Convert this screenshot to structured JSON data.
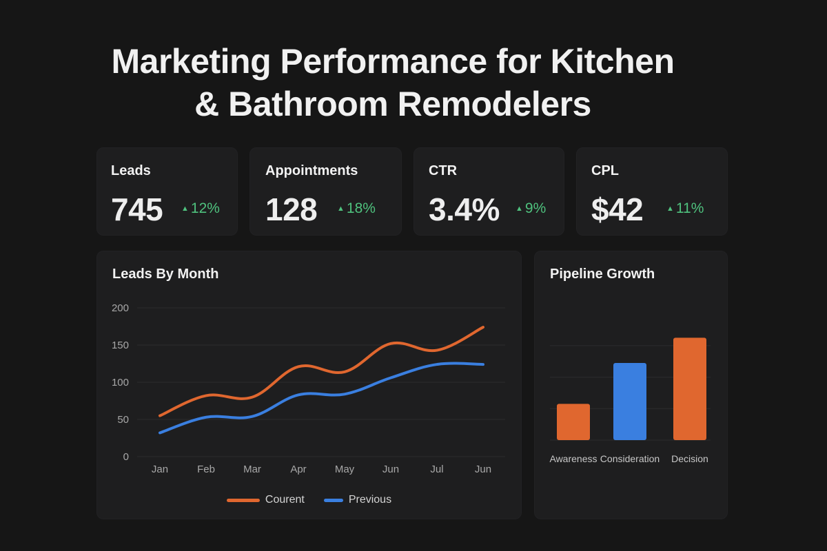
{
  "header": {
    "title_line1": "Marketing Performance for Kitchen",
    "title_line2": "& Bathroom Remodelers"
  },
  "kpis": [
    {
      "label": "Leads",
      "value": "745",
      "delta": "12%",
      "trend": "up",
      "trend_icon": "triangle-up"
    },
    {
      "label": "Appointments",
      "value": "128",
      "delta": "18%",
      "trend": "up",
      "trend_icon": "triangle-up"
    },
    {
      "label": "CTR",
      "value": "3.4%",
      "delta": "9%",
      "trend": "up",
      "trend_icon": "triangle-up"
    },
    {
      "label": "CPL",
      "value": "$42",
      "delta": "11%",
      "trend": "up",
      "trend_icon": "triangle-up"
    }
  ],
  "colors": {
    "background": "#161616",
    "card": "#1e1e1f",
    "positive": "#4fc27e",
    "current": "#e0672f",
    "previous": "#3a7fe0"
  },
  "chart_data": [
    {
      "type": "line",
      "title": "Leads By Month",
      "xlabel": "",
      "ylabel": "",
      "categories": [
        "Jan",
        "Feb",
        "Mar",
        "Apr",
        "May",
        "Jun",
        "Jul",
        "Jun"
      ],
      "ylim": [
        0,
        200
      ],
      "yticks": [
        0,
        50,
        100,
        150,
        200
      ],
      "grid": true,
      "smooth": true,
      "legend_position": "bottom-center",
      "series": [
        {
          "name": "Courent",
          "color": "#e0672f",
          "values": [
            55,
            82,
            80,
            121,
            114,
            152,
            143,
            174
          ]
        },
        {
          "name": "Previous",
          "color": "#3a7fe0",
          "values": [
            32,
            53,
            54,
            83,
            84,
            106,
            124,
            124
          ]
        }
      ]
    },
    {
      "type": "bar",
      "title": "Pipeline Growth",
      "xlabel": "",
      "ylabel": "",
      "categories": [
        "Awareness",
        "Consideration",
        "Decision"
      ],
      "values": [
        1.15,
        2.45,
        3.25
      ],
      "colors": [
        "#e0672f",
        "#3a7fe0",
        "#e0672f"
      ],
      "ylim": [
        0,
        3.5
      ],
      "yticks_unlabeled": [
        0,
        1,
        2,
        3
      ],
      "grid": true
    }
  ]
}
